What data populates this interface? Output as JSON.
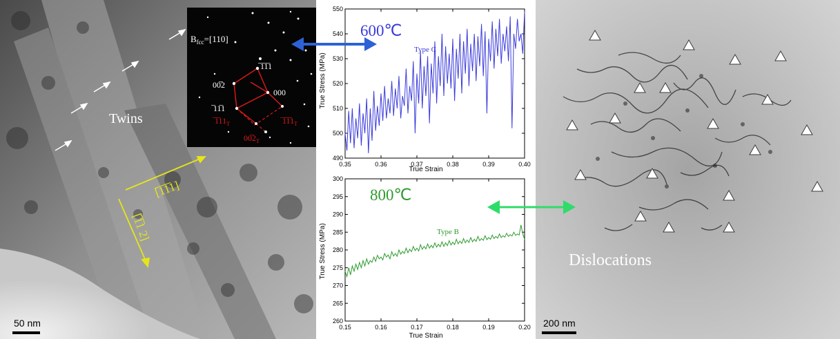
{
  "left_image": {
    "twins_label": "Twins",
    "scale_bar": "50 nm",
    "direction_labels": [
      "[̅1̅1̅1]",
      "[̅1̅1 2]"
    ]
  },
  "saed_inset": {
    "zone_axis_base": "B",
    "zone_axis_sub": "fcc",
    "zone_axis_value": "=[110]",
    "spots": [
      "00̅2",
      "̅1̅1̅1",
      "000",
      "̅11̅1"
    ],
    "twin_spots": [
      "̅1̅11",
      "̅1̅1̅1",
      "00̅2"
    ],
    "twin_sub": "T"
  },
  "right_image": {
    "dislocations_label": "Dislocations",
    "scale_bar": "200 nm"
  },
  "colors": {
    "blue_series": "#3b3bdc",
    "green_series": "#2e9b2e",
    "blue_arrow": "#2c62d6",
    "green_arrow": "#2edc6a",
    "annotation_yellow": "#e5e51a",
    "saed_red": "#e01919"
  },
  "chart_data": [
    {
      "type": "line",
      "title": "600℃",
      "annotation": "Type C",
      "xlabel": "True Strain",
      "ylabel": "True Stress (MPa)",
      "xlim": [
        0.35,
        0.4
      ],
      "ylim": [
        490,
        550
      ],
      "xticks": [
        "0.35",
        "0.36",
        "0.37",
        "0.38",
        "0.39",
        "0.40"
      ],
      "yticks": [
        "490",
        "500",
        "510",
        "520",
        "530",
        "540",
        "550"
      ],
      "series": [
        {
          "x": [
            0.35,
            0.3505,
            0.351,
            0.3515,
            0.352,
            0.3525,
            0.353,
            0.3535,
            0.354,
            0.3545,
            0.355,
            0.3555,
            0.356,
            0.3565,
            0.357,
            0.3575,
            0.358,
            0.3585,
            0.359,
            0.3595,
            0.36,
            0.3605,
            0.361,
            0.3615,
            0.362,
            0.3625,
            0.363,
            0.3635,
            0.364,
            0.3645,
            0.365,
            0.3655,
            0.366,
            0.3665,
            0.367,
            0.3675,
            0.368,
            0.3685,
            0.369,
            0.3695,
            0.37,
            0.3705,
            0.371,
            0.3715,
            0.372,
            0.3725,
            0.373,
            0.3735,
            0.374,
            0.3745,
            0.375,
            0.3755,
            0.376,
            0.3765,
            0.377,
            0.3775,
            0.378,
            0.3785,
            0.379,
            0.3795,
            0.38,
            0.3805,
            0.381,
            0.3815,
            0.382,
            0.3825,
            0.383,
            0.3835,
            0.384,
            0.3845,
            0.385,
            0.3855,
            0.386,
            0.3865,
            0.387,
            0.3875,
            0.388,
            0.3885,
            0.389,
            0.3895,
            0.39,
            0.3905,
            0.391,
            0.3915,
            0.392,
            0.3925,
            0.393,
            0.3935,
            0.394,
            0.3945,
            0.395,
            0.3955,
            0.396,
            0.3965,
            0.397,
            0.3975,
            0.398,
            0.3985,
            0.399,
            0.3995,
            0.4
          ],
          "y": [
            500,
            493,
            509,
            496,
            510,
            494,
            506,
            498,
            512,
            495,
            508,
            500,
            514,
            492,
            510,
            497,
            517,
            501,
            511,
            503,
            516,
            505,
            519,
            506,
            514,
            508,
            521,
            507,
            518,
            510,
            523,
            506,
            515,
            511,
            526,
            508,
            519,
            513,
            529,
            500,
            524,
            512,
            533,
            510,
            527,
            515,
            531,
            504,
            528,
            516,
            537,
            512,
            531,
            519,
            540,
            515,
            535,
            520,
            532,
            518,
            538,
            513,
            534,
            522,
            540,
            516,
            537,
            524,
            542,
            519,
            536,
            525,
            540,
            521,
            539,
            527,
            544,
            523,
            541,
            508,
            538,
            529,
            545,
            526,
            542,
            531,
            546,
            528,
            540,
            533,
            543,
            529,
            547,
            502,
            540,
            534,
            546,
            537,
            540,
            532,
            549
          ]
        }
      ]
    },
    {
      "type": "line",
      "title": "800℃",
      "annotation": "Type B",
      "xlabel": "True Strain",
      "ylabel": "True Stress (MPa)",
      "xlim": [
        0.15,
        0.2
      ],
      "ylim": [
        260,
        300
      ],
      "xticks": [
        "0.15",
        "0.16",
        "0.17",
        "0.18",
        "0.19",
        "0.20"
      ],
      "yticks": [
        "260",
        "265",
        "270",
        "275",
        "280",
        "285",
        "290",
        "295",
        "300"
      ],
      "series": [
        {
          "x": [
            0.15,
            0.1505,
            0.151,
            0.1515,
            0.152,
            0.1525,
            0.153,
            0.1535,
            0.154,
            0.1545,
            0.155,
            0.1555,
            0.156,
            0.1565,
            0.157,
            0.1575,
            0.158,
            0.1585,
            0.159,
            0.1595,
            0.16,
            0.1605,
            0.161,
            0.1615,
            0.162,
            0.1625,
            0.163,
            0.1635,
            0.164,
            0.1645,
            0.165,
            0.1655,
            0.166,
            0.1665,
            0.167,
            0.1675,
            0.168,
            0.1685,
            0.169,
            0.1695,
            0.17,
            0.1705,
            0.171,
            0.1715,
            0.172,
            0.1725,
            0.173,
            0.1735,
            0.174,
            0.1745,
            0.175,
            0.1755,
            0.176,
            0.1765,
            0.177,
            0.1775,
            0.178,
            0.1785,
            0.179,
            0.1795,
            0.18,
            0.1805,
            0.181,
            0.1815,
            0.182,
            0.1825,
            0.183,
            0.1835,
            0.184,
            0.1845,
            0.185,
            0.1855,
            0.186,
            0.1865,
            0.187,
            0.1875,
            0.188,
            0.1885,
            0.189,
            0.1895,
            0.19,
            0.1905,
            0.191,
            0.1915,
            0.192,
            0.1925,
            0.193,
            0.1935,
            0.194,
            0.1945,
            0.195,
            0.1955,
            0.196,
            0.1965,
            0.197,
            0.1975,
            0.198,
            0.1985,
            0.199,
            0.1995,
            0.2
          ],
          "y": [
            274,
            272.5,
            275,
            273,
            275.5,
            274,
            276,
            274.5,
            276.5,
            275,
            277,
            275.5,
            277.5,
            276,
            277,
            276.5,
            278,
            276.8,
            278.5,
            277.5,
            278,
            277.2,
            279,
            278,
            278.6,
            277.5,
            279.5,
            278.3,
            279,
            278.2,
            280,
            278.8,
            279.6,
            279,
            280.5,
            279.2,
            280.2,
            279.5,
            281,
            279.8,
            280.5,
            279.7,
            281.5,
            280.2,
            281,
            280.3,
            281.7,
            280.5,
            281.3,
            280.6,
            282,
            280.8,
            281.6,
            280.9,
            282.3,
            281,
            282,
            281.2,
            282.6,
            281.4,
            282.2,
            281.5,
            283,
            281.7,
            282.5,
            281.8,
            283.2,
            282,
            282.8,
            282.1,
            283.5,
            282.3,
            283,
            282.4,
            283.8,
            282.6,
            283.2,
            282.7,
            284,
            282.9,
            283.5,
            283,
            284.2,
            283.2,
            283.8,
            283.3,
            284.5,
            283.5,
            284,
            283.6,
            284.7,
            283.8,
            284.3,
            283.9,
            285,
            284.1,
            284.5,
            284.2,
            287,
            284.5,
            283
          ]
        }
      ]
    }
  ]
}
